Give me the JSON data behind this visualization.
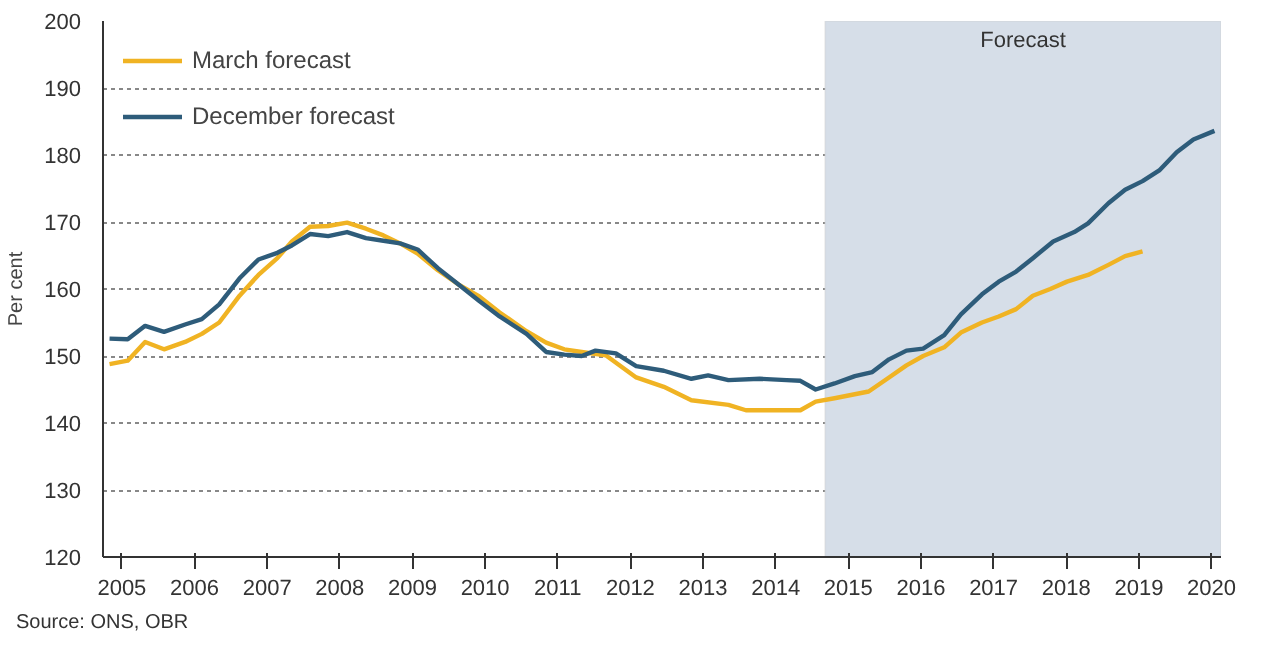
{
  "chart_data": {
    "type": "line",
    "ylabel": "Per cent",
    "xlim": [
      2004.74,
      2020.13
    ],
    "ylim": [
      120,
      200
    ],
    "xticks": [
      2005,
      2006,
      2007,
      2008,
      2009,
      2010,
      2011,
      2012,
      2013,
      2014,
      2015,
      2016,
      2017,
      2018,
      2019,
      2020
    ],
    "yticks": [
      120,
      130,
      140,
      150,
      160,
      170,
      180,
      190,
      200
    ],
    "grid": "y",
    "legend": "top left",
    "line_style": "solid",
    "bands": [
      {
        "axis": "x",
        "from": 2014.68,
        "to": 2020.13,
        "label": "Forecast",
        "color": "#d6dee8"
      }
    ],
    "annotations": [
      "Source: ONS, OBR"
    ],
    "series": [
      {
        "name": "March forecast",
        "color": "#f0b323",
        "x": [
          2004.83,
          2005.08,
          2005.32,
          2005.58,
          2005.87,
          2006.1,
          2006.34,
          2006.62,
          2006.88,
          2007.14,
          2007.34,
          2007.59,
          2007.84,
          2008.1,
          2008.36,
          2008.6,
          2008.83,
          2009.07,
          2009.35,
          2009.63,
          2009.92,
          2010.2,
          2010.57,
          2010.84,
          2011.09,
          2011.33,
          2011.66,
          2012.08,
          2012.46,
          2012.84,
          2013.35,
          2013.59,
          2013.96,
          2014.34,
          2014.55,
          2014.81,
          2015.28,
          2015.56,
          2015.8,
          2016.03,
          2016.32,
          2016.55,
          2016.84,
          2017.07,
          2017.31,
          2017.54,
          2017.78,
          2018.01,
          2018.3,
          2018.58,
          2018.81,
          2019.05
        ],
        "values": [
          148.8,
          149.3,
          152.1,
          151.0,
          152.1,
          153.3,
          155.0,
          159.0,
          162.1,
          164.6,
          167.1,
          169.3,
          169.4,
          169.9,
          169.0,
          168.0,
          166.8,
          165.3,
          162.8,
          160.7,
          158.9,
          156.5,
          153.7,
          152.0,
          151.0,
          150.6,
          150.1,
          146.8,
          145.4,
          143.4,
          142.7,
          141.9,
          141.9,
          141.9,
          143.2,
          143.7,
          144.7,
          146.8,
          148.6,
          150.0,
          151.3,
          153.5,
          155.0,
          155.9,
          157.0,
          159.0,
          160.0,
          161.1,
          162.1,
          163.6,
          164.9,
          165.6
        ]
      },
      {
        "name": "December forecast",
        "color": "#2e5c7a",
        "x": [
          2004.83,
          2005.08,
          2005.32,
          2005.58,
          2005.87,
          2006.1,
          2006.34,
          2006.62,
          2006.88,
          2007.14,
          2007.34,
          2007.59,
          2007.84,
          2008.1,
          2008.36,
          2008.6,
          2008.83,
          2009.07,
          2009.35,
          2009.63,
          2009.92,
          2010.2,
          2010.57,
          2010.84,
          2011.09,
          2011.33,
          2011.52,
          2011.8,
          2012.08,
          2012.46,
          2012.84,
          2013.07,
          2013.35,
          2013.78,
          2014.15,
          2014.34,
          2014.55,
          2014.81,
          2015.09,
          2015.33,
          2015.56,
          2015.8,
          2016.03,
          2016.32,
          2016.55,
          2016.84,
          2017.07,
          2017.31,
          2017.54,
          2017.82,
          2018.11,
          2018.3,
          2018.58,
          2018.81,
          2019.05,
          2019.28,
          2019.52,
          2019.75,
          2020.04
        ],
        "values": [
          152.6,
          152.5,
          154.5,
          153.6,
          154.7,
          155.5,
          157.7,
          161.6,
          164.4,
          165.4,
          166.5,
          168.2,
          167.9,
          168.5,
          167.6,
          167.2,
          166.8,
          165.9,
          163.1,
          160.7,
          158.2,
          155.9,
          153.3,
          150.6,
          150.2,
          150.0,
          150.8,
          150.4,
          148.5,
          147.8,
          146.6,
          147.1,
          146.4,
          146.6,
          146.4,
          146.3,
          145.0,
          145.9,
          147.0,
          147.6,
          149.5,
          150.8,
          151.1,
          153.1,
          156.2,
          159.2,
          161.1,
          162.6,
          164.6,
          167.1,
          168.5,
          169.8,
          172.8,
          174.8,
          176.1,
          177.7,
          180.4,
          182.3,
          183.6
        ]
      }
    ]
  }
}
